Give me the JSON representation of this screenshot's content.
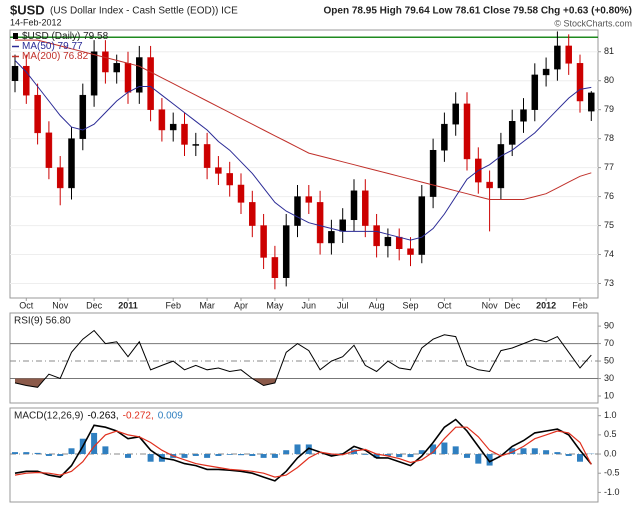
{
  "chart_data": [
    {
      "type": "candlestick",
      "symbol": "$USD",
      "title": "(US Dollar Index - Cash Settle (EOD)) ICE",
      "subtitle": "14-Feb-2012",
      "quote": "Open 78.95 High 79.64 Low 78.61 Close 79.58 Chg +0.63 (+0.80%)",
      "source": "© StockCharts.com",
      "name": "$USD (Daily) 79.58",
      "up_color": "#000000",
      "down_color": "#cc0000",
      "categories": [
        null,
        "Oct",
        null,
        null,
        "Nov",
        null,
        null,
        "Dec",
        null,
        null,
        "2011",
        null,
        null,
        null,
        "Feb",
        null,
        null,
        "Mar",
        null,
        null,
        "Apr",
        null,
        null,
        "May",
        null,
        null,
        "Jun",
        null,
        null,
        "Jul",
        null,
        null,
        "Aug",
        null,
        null,
        "Sep",
        null,
        null,
        "Oct",
        null,
        null,
        null,
        "Nov",
        null,
        "Dec",
        null,
        null,
        "2012",
        null,
        null,
        "Feb",
        null
      ],
      "open": [
        80.0,
        80.5,
        79.5,
        78.2,
        77.0,
        76.3,
        78.0,
        79.5,
        81.0,
        80.3,
        80.6,
        79.6,
        80.8,
        79.0,
        78.3,
        78.5,
        77.8,
        77.8,
        77.0,
        76.8,
        76.4,
        75.8,
        75.0,
        73.9,
        73.2,
        75.0,
        76.0,
        75.8,
        74.4,
        74.8,
        75.2,
        76.2,
        75.0,
        74.3,
        74.6,
        74.2,
        74.0,
        76.0,
        77.6,
        78.5,
        79.2,
        77.3,
        76.5,
        76.3,
        77.8,
        78.6,
        79.0,
        80.2,
        80.4,
        81.2,
        80.6,
        78.95
      ],
      "high": [
        80.9,
        80.9,
        79.9,
        78.6,
        77.4,
        78.4,
        79.9,
        81.4,
        81.4,
        80.9,
        81.0,
        81.2,
        81.2,
        79.4,
        78.9,
        78.9,
        78.2,
        78.2,
        77.4,
        77.2,
        76.8,
        76.2,
        75.4,
        74.3,
        75.4,
        76.4,
        76.4,
        76.2,
        75.2,
        75.6,
        76.6,
        76.6,
        75.4,
        74.9,
        74.9,
        74.6,
        76.4,
        78.0,
        78.9,
        79.6,
        79.6,
        77.7,
        76.9,
        78.2,
        79.0,
        79.4,
        80.6,
        80.8,
        81.7,
        81.6,
        80.9,
        79.64
      ],
      "low": [
        79.6,
        79.2,
        77.8,
        76.6,
        75.7,
        75.9,
        77.6,
        79.1,
        79.9,
        79.9,
        79.2,
        79.2,
        78.6,
        77.9,
        77.9,
        77.4,
        77.4,
        76.6,
        76.4,
        76.0,
        75.4,
        74.6,
        73.5,
        72.8,
        72.9,
        74.6,
        75.4,
        74.0,
        74.0,
        74.4,
        74.8,
        74.6,
        73.9,
        73.9,
        73.8,
        73.6,
        73.7,
        75.6,
        77.2,
        78.1,
        76.9,
        76.1,
        74.8,
        75.9,
        77.4,
        78.2,
        78.6,
        79.8,
        80.0,
        80.2,
        78.9,
        78.61
      ],
      "close": [
        80.5,
        79.5,
        78.2,
        77.0,
        76.3,
        78.0,
        79.5,
        81.0,
        80.3,
        80.6,
        79.6,
        80.8,
        79.0,
        78.3,
        78.5,
        77.8,
        77.8,
        77.0,
        76.8,
        76.4,
        75.8,
        75.0,
        73.9,
        73.2,
        75.0,
        76.0,
        75.8,
        74.4,
        74.8,
        75.2,
        76.2,
        75.0,
        74.3,
        74.6,
        74.2,
        74.0,
        76.0,
        77.6,
        78.5,
        79.2,
        77.3,
        76.5,
        76.3,
        77.8,
        78.6,
        79.0,
        80.2,
        80.4,
        81.2,
        80.6,
        79.3,
        79.58
      ],
      "series": [
        {
          "name": "MA(50) 79.77",
          "color": "#2b2b96",
          "values": [
            80.7,
            80.3,
            79.8,
            79.3,
            78.8,
            78.4,
            78.3,
            78.5,
            78.9,
            79.3,
            79.6,
            79.8,
            79.8,
            79.5,
            79.2,
            78.9,
            78.6,
            78.3,
            77.9,
            77.6,
            77.2,
            76.8,
            76.3,
            75.8,
            75.5,
            75.3,
            75.1,
            75.0,
            74.9,
            74.8,
            74.8,
            74.8,
            74.8,
            74.7,
            74.6,
            74.5,
            74.6,
            74.9,
            75.4,
            76.0,
            76.6,
            76.9,
            77.1,
            77.4,
            77.6,
            77.9,
            78.2,
            78.6,
            79.0,
            79.4,
            79.7,
            79.77
          ]
        },
        {
          "name": "MA(200) 76.82",
          "color": "#c0302a",
          "values": [
            81.4,
            81.4,
            81.4,
            81.3,
            81.2,
            81.1,
            81.0,
            80.9,
            80.8,
            80.7,
            80.6,
            80.5,
            80.3,
            80.1,
            79.9,
            79.7,
            79.5,
            79.3,
            79.1,
            78.9,
            78.7,
            78.5,
            78.3,
            78.1,
            77.9,
            77.7,
            77.5,
            77.4,
            77.3,
            77.2,
            77.1,
            77.0,
            76.9,
            76.8,
            76.7,
            76.6,
            76.5,
            76.4,
            76.3,
            76.2,
            76.1,
            76.0,
            75.9,
            75.9,
            75.9,
            75.9,
            76.0,
            76.1,
            76.3,
            76.5,
            76.7,
            76.82
          ]
        }
      ],
      "hline": {
        "value": 81.5,
        "color": "#1f8a1f"
      },
      "ylim": [
        72.5,
        81.75
      ],
      "yticks": [
        73,
        74,
        75,
        76,
        77,
        78,
        79,
        80,
        81
      ],
      "grid": true
    },
    {
      "type": "rsi",
      "title": "RSI(9) 56.80",
      "color": "#000000",
      "fill_color": "#8b5a4a",
      "values": [
        25,
        22,
        20,
        35,
        30,
        60,
        75,
        85,
        70,
        72,
        55,
        72,
        40,
        45,
        50,
        40,
        45,
        40,
        42,
        38,
        40,
        30,
        22,
        25,
        60,
        70,
        62,
        40,
        50,
        55,
        68,
        45,
        38,
        50,
        42,
        40,
        65,
        75,
        80,
        78,
        45,
        40,
        38,
        62,
        65,
        70,
        75,
        72,
        78,
        60,
        42,
        56.8
      ],
      "bands": [
        30,
        70
      ],
      "midline": 50,
      "ylim": [
        2,
        105
      ],
      "yticks": [
        90,
        70,
        50,
        30,
        10
      ]
    },
    {
      "type": "macd",
      "title": "MACD(12,26,9)",
      "series": [
        {
          "name": "-0.263,",
          "color": "#000000",
          "values": [
            -0.5,
            -0.45,
            -0.45,
            -0.55,
            -0.6,
            -0.3,
            0.2,
            0.75,
            0.7,
            0.6,
            0.4,
            0.45,
            0.1,
            -0.1,
            -0.15,
            -0.25,
            -0.3,
            -0.4,
            -0.4,
            -0.42,
            -0.45,
            -0.5,
            -0.6,
            -0.7,
            -0.45,
            -0.1,
            0.15,
            0.05,
            -0.05,
            0.0,
            0.2,
            0.1,
            -0.1,
            -0.1,
            -0.2,
            -0.3,
            -0.05,
            0.3,
            0.7,
            0.9,
            0.6,
            0.2,
            -0.2,
            -0.05,
            0.2,
            0.35,
            0.55,
            0.6,
            0.65,
            0.5,
            0.1,
            -0.263
          ]
        },
        {
          "name": "-0.272,",
          "color": "#e0301e",
          "values": [
            -0.55,
            -0.5,
            -0.48,
            -0.5,
            -0.55,
            -0.45,
            -0.2,
            0.2,
            0.5,
            0.6,
            0.5,
            0.45,
            0.3,
            0.1,
            -0.05,
            -0.15,
            -0.25,
            -0.3,
            -0.35,
            -0.4,
            -0.42,
            -0.45,
            -0.5,
            -0.6,
            -0.55,
            -0.35,
            -0.1,
            0.05,
            0.0,
            -0.02,
            0.08,
            0.12,
            0.0,
            -0.05,
            -0.12,
            -0.22,
            -0.15,
            0.05,
            0.4,
            0.7,
            0.7,
            0.45,
            0.1,
            -0.05,
            0.05,
            0.2,
            0.4,
            0.5,
            0.6,
            0.55,
            0.3,
            -0.272
          ]
        },
        {
          "name": "0.009",
          "color": "#2f7fc0",
          "bars": true,
          "values": [
            0.05,
            0.05,
            0.03,
            -0.05,
            -0.05,
            0.15,
            0.4,
            0.55,
            0.2,
            0.0,
            -0.1,
            0.0,
            -0.2,
            -0.2,
            -0.1,
            -0.1,
            -0.05,
            -0.1,
            -0.05,
            -0.02,
            -0.03,
            -0.05,
            -0.1,
            -0.1,
            0.1,
            0.25,
            0.25,
            0.0,
            -0.05,
            0.02,
            0.12,
            -0.02,
            -0.1,
            -0.05,
            -0.08,
            -0.08,
            0.1,
            0.25,
            0.3,
            0.2,
            -0.1,
            -0.25,
            -0.3,
            0.0,
            0.15,
            0.15,
            0.15,
            0.1,
            0.05,
            -0.05,
            -0.2,
            0.009
          ]
        }
      ],
      "zero_line": true,
      "ylim": [
        -1.25,
        1.2
      ],
      "yticks": [
        {
          "value": 1,
          "label": "1.0"
        },
        0.5,
        {
          "value": 0,
          "label": "0.0"
        },
        -0.5,
        {
          "value": -1,
          "label": "-1.0"
        }
      ]
    }
  ]
}
